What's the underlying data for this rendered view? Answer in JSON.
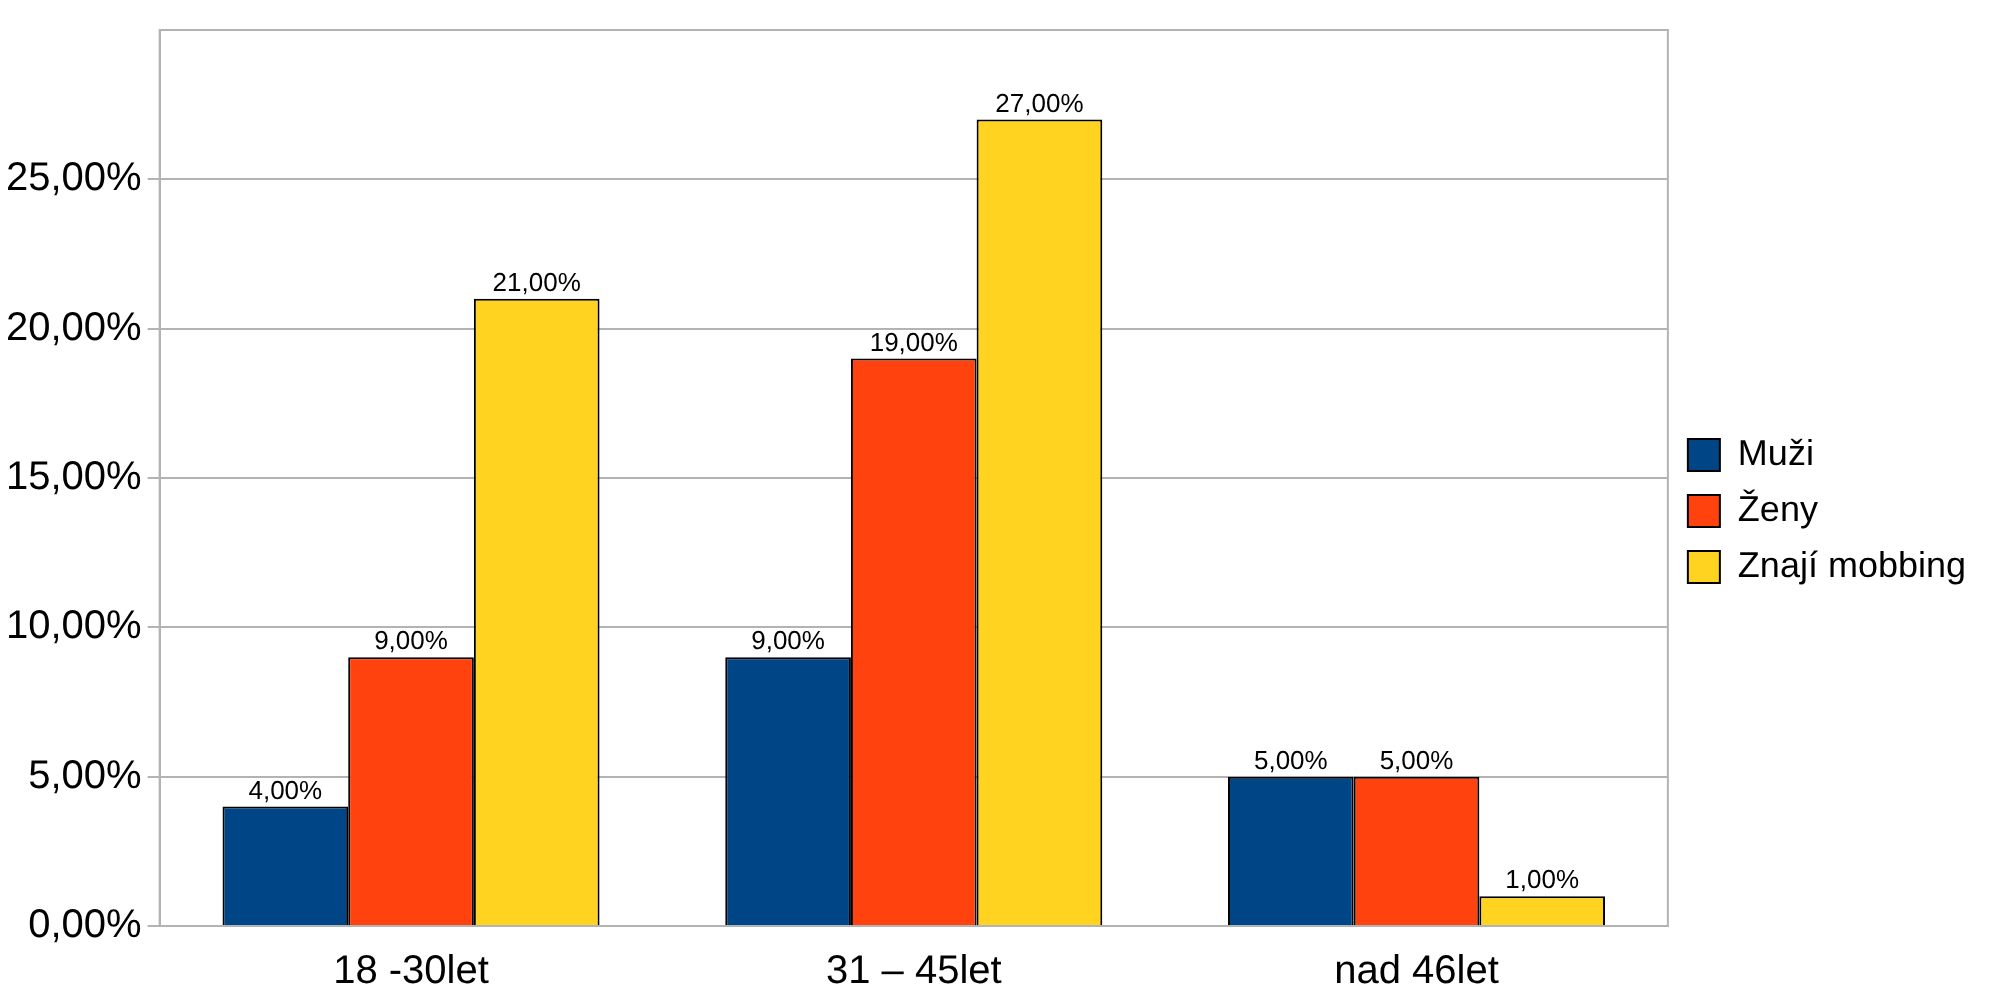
{
  "chart_data": {
    "type": "bar",
    "categories": [
      "18 -30let",
      "31 – 45let",
      "nad 46let"
    ],
    "series": [
      {
        "name": "Muži",
        "color": "#004586",
        "values": [
          4,
          9,
          5
        ],
        "value_labels": [
          "4,00%",
          "9,00%",
          "5,00%"
        ]
      },
      {
        "name": "Ženy",
        "color": "#ff420e",
        "values": [
          9,
          19,
          5
        ],
        "value_labels": [
          "9,00%",
          "19,00%",
          "5,00%"
        ]
      },
      {
        "name": "Znají mobbing",
        "color": "#ffd320",
        "values": [
          21,
          27,
          1
        ],
        "value_labels": [
          "21,00%",
          "27,00%",
          "1,00%"
        ]
      }
    ],
    "ylim": [
      0,
      30
    ],
    "yticks": [
      {
        "value": 0,
        "label": "0,00%"
      },
      {
        "value": 5,
        "label": "5,00%"
      },
      {
        "value": 10,
        "label": "10,00%"
      },
      {
        "value": 15,
        "label": "15,00%"
      },
      {
        "value": 20,
        "label": "20,00%"
      },
      {
        "value": 25,
        "label": "25,00%"
      }
    ],
    "grid": "y",
    "legend": "right"
  }
}
